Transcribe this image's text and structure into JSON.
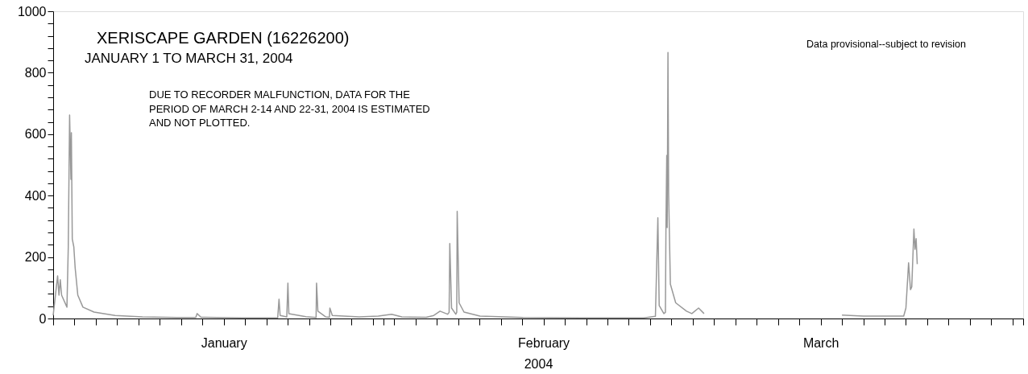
{
  "chart_data": {
    "type": "line",
    "title": "XERISCAPE GARDEN (16226200)",
    "subtitle": "JANUARY  1 TO MARCH 31, 2004",
    "xlabel": "2004",
    "annotations": [
      "DUE TO RECORDER MALFUNCTION, DATA FOR THE\nPERIOD OF MARCH 2-14 AND 22-31, 2004 IS ESTIMATED\nAND NOT PLOTTED.",
      "Data provisional--subject to revision"
    ],
    "x": [
      "2004-01-01T00:00",
      "2004-01-01T10:00",
      "2004-01-01T13:00",
      "2004-01-01T16:00",
      "2004-01-01T19:00",
      "2004-01-02T07:00",
      "2004-01-02T10:00",
      "2004-01-02T13:00",
      "2004-01-02T16:00",
      "2004-01-02T17:00",
      "2004-01-02T19:00",
      "2004-01-02T22:30",
      "2004-01-03T01:30",
      "2004-01-03T07:30",
      "2004-01-03T19:00",
      "2004-01-04T20:00",
      "2004-01-06T19:30",
      "2004-01-09T09:00",
      "2004-01-12T14:00",
      "2004-01-14T09:00",
      "2004-01-14T12:00",
      "2004-01-14T21:00",
      "2004-01-18T16:00",
      "2004-01-22T01:30",
      "2004-01-22T04:30",
      "2004-01-22T07:00",
      "2004-01-22T22:00",
      "2004-01-23T00:30",
      "2004-01-23T02:40",
      "2004-01-24T17:00",
      "2004-01-25T16:00",
      "2004-01-25T17:00",
      "2004-01-25T20:00",
      "2004-01-26T14:00",
      "2004-01-26T22:00",
      "2004-01-26T23:00",
      "2004-01-27T04:30",
      "2004-01-29T17:00",
      "2004-01-31T12:00",
      "2004-02-01T18:00",
      "2004-02-02T17:00",
      "2004-02-05T00:00",
      "2004-02-05T17:00",
      "2004-02-06T07:00",
      "2004-02-07T00:00",
      "2004-02-07T03:30",
      "2004-02-07T05:00",
      "2004-02-07T09:00",
      "2004-02-07T18:30",
      "2004-02-07T20:40",
      "2004-02-07T21:40",
      "2004-02-08T02:00",
      "2004-02-08T13:00",
      "2004-02-10T01:00",
      "2004-02-14T02:00",
      "2004-02-19T10:00",
      "2004-02-25T10:00",
      "2004-02-26T12:00",
      "2004-02-26T17:30",
      "2004-02-26T20:30",
      "2004-02-27T07:00",
      "2004-02-27T10:30",
      "2004-02-27T11:45",
      "2004-02-27T13:30",
      "2004-02-27T14:30",
      "2004-02-27T16:15",
      "2004-02-27T17:45",
      "2004-02-27T19:00",
      "2004-02-27T21:40",
      "2004-02-28T09:40",
      "2004-02-29T10:00",
      "2004-02-29T22:00",
      "2004-03-01T13:10",
      "2004-03-02T01:30",
      "2004-03-08T00:00",
      "2004-03-15T00:00",
      "2004-03-17T00:00",
      "2004-03-20T19:00",
      "2004-03-21T00:00",
      "2004-03-21T06:00",
      "2004-03-21T10:20",
      "2004-03-21T13:10",
      "2004-03-21T18:00",
      "2004-03-21T20:30",
      "2004-03-21T23:00",
      "2004-03-22T01:30"
    ],
    "series": [
      {
        "color": "#999999",
        "values": [
          10,
          139,
          76,
          126,
          76,
          37,
          233,
          662,
          453,
          605,
          259,
          233,
          165,
          76,
          37,
          21,
          10,
          5,
          3,
          3,
          16,
          4,
          2,
          2,
          63,
          10,
          5,
          115,
          16,
          6,
          3,
          115,
          24,
          5,
          4,
          34,
          10,
          5,
          8,
          14,
          5,
          4,
          10,
          24,
          14,
          20,
          244,
          34,
          14,
          20,
          349,
          51,
          21,
          8,
          3,
          2,
          2,
          7,
          328,
          42,
          16,
          20,
          304,
          531,
          296,
          866,
          408,
          312,
          112,
          51,
          24,
          16,
          34,
          16,
          null,
          11,
          8,
          8,
          34,
          181,
          94,
          103,
          291,
          225,
          260,
          177
        ]
      }
    ],
    "xlim": [
      "2004-01-01",
      "2004-04-01"
    ],
    "xticks": [
      {
        "value": "2004-01-01",
        "label": null
      },
      {
        "value": "2004-01-03",
        "label": null
      },
      {
        "value": "2004-01-05",
        "label": null
      },
      {
        "value": "2004-01-07",
        "label": null
      },
      {
        "value": "2004-01-09",
        "label": null
      },
      {
        "value": "2004-01-11",
        "label": null
      },
      {
        "value": "2004-01-13",
        "label": null
      },
      {
        "value": "2004-01-15",
        "label": null
      },
      {
        "value": "2004-01-17",
        "label": "January"
      },
      {
        "value": "2004-01-19",
        "label": null
      },
      {
        "value": "2004-01-21",
        "label": null
      },
      {
        "value": "2004-01-23",
        "label": null
      },
      {
        "value": "2004-01-25",
        "label": null
      },
      {
        "value": "2004-01-27",
        "label": null
      },
      {
        "value": "2004-01-29",
        "label": null
      },
      {
        "value": "2004-01-31",
        "label": null
      },
      {
        "value": "2004-02-01",
        "label": null
      },
      {
        "value": "2004-02-02",
        "label": null
      },
      {
        "value": "2004-02-04",
        "label": null
      },
      {
        "value": "2004-02-06",
        "label": null
      },
      {
        "value": "2004-02-08",
        "label": null
      },
      {
        "value": "2004-02-10",
        "label": null
      },
      {
        "value": "2004-02-12",
        "label": null
      },
      {
        "value": "2004-02-14",
        "label": null
      },
      {
        "value": "2004-02-16",
        "label": "February"
      },
      {
        "value": "2004-02-18",
        "label": null
      },
      {
        "value": "2004-02-20",
        "label": null
      },
      {
        "value": "2004-02-22",
        "label": null
      },
      {
        "value": "2004-02-24",
        "label": null
      },
      {
        "value": "2004-02-26",
        "label": null
      },
      {
        "value": "2004-02-28",
        "label": null
      },
      {
        "value": "2004-03-01",
        "label": null
      },
      {
        "value": "2004-03-03",
        "label": null
      },
      {
        "value": "2004-03-05",
        "label": null
      },
      {
        "value": "2004-03-07",
        "label": null
      },
      {
        "value": "2004-03-09",
        "label": null
      },
      {
        "value": "2004-03-11",
        "label": null
      },
      {
        "value": "2004-03-13",
        "label": "March"
      },
      {
        "value": "2004-03-15",
        "label": null
      },
      {
        "value": "2004-03-17",
        "label": null
      },
      {
        "value": "2004-03-19",
        "label": null
      },
      {
        "value": "2004-03-21",
        "label": null
      },
      {
        "value": "2004-03-23",
        "label": null
      },
      {
        "value": "2004-03-25",
        "label": null
      },
      {
        "value": "2004-03-27",
        "label": null
      },
      {
        "value": "2004-03-29",
        "label": null
      },
      {
        "value": "2004-03-31",
        "label": null
      },
      {
        "value": "2004-04-01",
        "label": null
      }
    ],
    "ylim": [
      0,
      1000
    ],
    "yticks": [
      0,
      {
        "value": 40,
        "label": null
      },
      {
        "value": 80,
        "label": null
      },
      {
        "value": 120,
        "label": null
      },
      {
        "value": 160,
        "label": null
      },
      200,
      {
        "value": 240,
        "label": null
      },
      {
        "value": 280,
        "label": null
      },
      {
        "value": 320,
        "label": null
      },
      {
        "value": 360,
        "label": null
      },
      400,
      {
        "value": 440,
        "label": null
      },
      {
        "value": 480,
        "label": null
      },
      {
        "value": 520,
        "label": null
      },
      {
        "value": 560,
        "label": null
      },
      600,
      {
        "value": 640,
        "label": null
      },
      {
        "value": 680,
        "label": null
      },
      {
        "value": 720,
        "label": null
      },
      {
        "value": 760,
        "label": null
      },
      800,
      {
        "value": 840,
        "label": null
      },
      {
        "value": 880,
        "label": null
      },
      {
        "value": 920,
        "label": null
      },
      {
        "value": 960,
        "label": null
      },
      1000
    ],
    "grid": false,
    "marker": "none",
    "line_style": "solid"
  }
}
